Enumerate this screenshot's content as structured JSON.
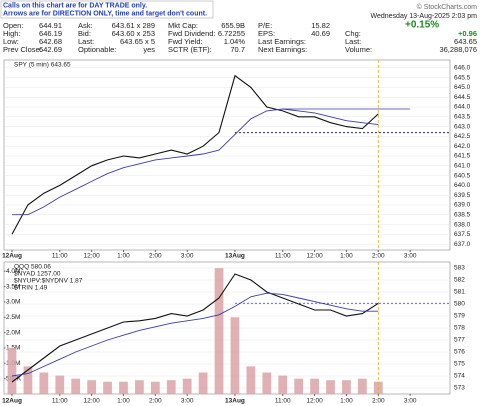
{
  "note": [
    "Calls on this chart are for DAY TRADE only.",
    "Arrows are for DIRECTION ONLY, time and target don't count."
  ],
  "date": "Wednesday 13-Aug-2025 2:03 pm",
  "watermark": "© StockCharts.com",
  "quote": {
    "change_pct": "+0.15%",
    "cols": [
      [
        {
          "label": "Open:",
          "value": "644.91"
        },
        {
          "label": "High:",
          "value": "646.19"
        },
        {
          "label": "Low:",
          "value": "642.68"
        },
        {
          "label": "Prev Close:",
          "value": "642.69"
        }
      ],
      [
        {
          "label": "Ask:",
          "value": "643.61 x 289"
        },
        {
          "label": "Bid:",
          "value": "643.60 x 253"
        },
        {
          "label": "Last:",
          "value": "643.65 x 5"
        },
        {
          "label": "Optionable:",
          "value": "yes"
        }
      ],
      [
        {
          "label": "Mkt Cap:",
          "value": "655.9B"
        },
        {
          "label": "Fwd Dividend:",
          "value": "6.72255"
        },
        {
          "label": "Fwd Yield:",
          "value": "1.04%"
        },
        {
          "label": "SCTR (ETF):",
          "value": "70.7"
        }
      ],
      [
        {
          "label": "P/E:",
          "value": "15.82"
        },
        {
          "label": "EPS:",
          "value": "40.69"
        },
        {
          "label": "Last Earnings:"
        },
        {
          "label": "Next Earnings:"
        }
      ],
      [
        {
          "label": "Chg:",
          "value": "+0.96"
        },
        {
          "label": "Last:",
          "value": "643.65"
        },
        {
          "label": "Volume:",
          "value": "36,288,076"
        }
      ]
    ]
  },
  "chart_data": [
    {
      "type": "line",
      "legend": [
        "SPY (5 min) 643.65"
      ],
      "categories": [
        "12Aug",
        null,
        null,
        "11:00",
        null,
        "12:00",
        null,
        "1:00",
        null,
        "2:00",
        null,
        "3:00",
        null,
        null,
        "13Aug",
        null,
        null,
        "11:00",
        null,
        "12:00",
        null,
        "1:00",
        null,
        "2:00",
        null,
        "3:00",
        null,
        null
      ],
      "series": [
        {
          "name": "SPY",
          "color": "#111111",
          "values": [
            637.5,
            639.0,
            639.6,
            640.0,
            640.5,
            641.0,
            641.3,
            641.5,
            641.4,
            641.6,
            641.8,
            641.6,
            642.0,
            642.7,
            645.6,
            645.0,
            644.0,
            643.8,
            643.5,
            643.5,
            643.2,
            643.0,
            642.9,
            643.65,
            null,
            null,
            null,
            null
          ]
        },
        {
          "name": "SMA",
          "color": "#3a3aa8",
          "values": [
            638.5,
            638.5,
            638.9,
            639.4,
            639.8,
            640.2,
            640.6,
            640.9,
            641.1,
            641.3,
            641.4,
            641.5,
            641.6,
            641.8,
            642.6,
            643.4,
            643.8,
            643.9,
            643.8,
            643.7,
            643.5,
            643.3,
            643.2,
            643.1,
            null,
            null,
            null,
            null
          ]
        }
      ],
      "hlines": [
        {
          "value": 642.69,
          "color": "#000080",
          "dash": true
        },
        {
          "value": 643.9,
          "color": "#3a3aa8",
          "dash": false
        }
      ],
      "ylim": [
        636.7,
        646.4
      ],
      "yticks": [
        {
          "value": 637,
          "label": "637.0"
        },
        637.5,
        {
          "value": 638,
          "label": "638.0"
        },
        638.5,
        {
          "value": 639,
          "label": "639.0"
        },
        639.5,
        {
          "value": 640,
          "label": "640.0"
        },
        640.5,
        {
          "value": 641,
          "label": "641.0"
        },
        641.5,
        {
          "value": 642,
          "label": "642.0"
        },
        642.5,
        {
          "value": 643,
          "label": "643.0"
        },
        643.5,
        {
          "value": 644,
          "label": "644.0"
        },
        644.5,
        {
          "value": 645,
          "label": "645.0"
        },
        645.5,
        {
          "value": 646,
          "label": "646.0"
        }
      ],
      "grid": true
    },
    {
      "type": "line",
      "legend": [
        "QQQ 580.06",
        "$NYAD 1257.00",
        "$NYUPV:$NYDNV 1.87",
        "$TRIN 1.49"
      ],
      "categories": [
        "12Aug",
        null,
        null,
        "11:00",
        null,
        "12:00",
        null,
        "1:00",
        null,
        "2:00",
        null,
        "3:00",
        null,
        null,
        "13Aug",
        null,
        null,
        "11:00",
        null,
        "12:00",
        null,
        "1:00",
        null,
        "2:00",
        null,
        "3:00",
        null,
        null
      ],
      "series": [
        {
          "name": "QQQ",
          "color": "#111111",
          "values": [
            573.5,
            574.5,
            575.5,
            576.5,
            577.0,
            577.5,
            578.0,
            578.5,
            578.6,
            578.8,
            579.2,
            579.0,
            579.5,
            580.5,
            582.5,
            582.0,
            581.0,
            580.5,
            580.0,
            579.5,
            579.5,
            579.0,
            579.2,
            580.06,
            null,
            null,
            null,
            null
          ]
        },
        {
          "name": "SMA",
          "color": "#3a3aa8",
          "values": [
            574.0,
            574.2,
            574.8,
            575.4,
            576.0,
            576.5,
            577.0,
            577.4,
            577.8,
            578.1,
            578.4,
            578.6,
            578.8,
            579.1,
            579.8,
            580.6,
            580.9,
            580.8,
            580.5,
            580.2,
            579.9,
            579.6,
            579.4,
            579.4,
            null,
            null,
            null,
            null
          ]
        },
        {
          "name": "Volume",
          "type": "bar",
          "axis": "y2",
          "color": "#d9a3a8",
          "values": [
            1500000,
            900000,
            700000,
            600000,
            500000,
            450000,
            400000,
            400000,
            450000,
            400000,
            450000,
            500000,
            700000,
            4100000,
            2500000,
            900000,
            700000,
            600000,
            500000,
            500000,
            450000,
            450000,
            500000,
            400000,
            null,
            null,
            null,
            null
          ]
        }
      ],
      "hlines": [
        {
          "value": 580.06,
          "color": "#3a3aa8",
          "dash": true
        }
      ],
      "ylim": [
        572.5,
        583.5
      ],
      "yticks": [
        573,
        574,
        575,
        576,
        577,
        578,
        579,
        580,
        581,
        582,
        583
      ],
      "y2lim": [
        0,
        4300000
      ],
      "y2ticks": [
        {
          "value": 500000,
          "label": "500K"
        },
        {
          "value": 1000000,
          "label": "1.0M"
        },
        {
          "value": 1500000,
          "label": "1.5M"
        },
        {
          "value": 2000000,
          "label": "2.0M"
        },
        {
          "value": 2500000,
          "label": "2.5M"
        },
        {
          "value": 3000000,
          "label": "3.0M"
        },
        {
          "value": 3500000,
          "label": "3.5M"
        },
        {
          "value": 4000000,
          "label": "4.0M"
        }
      ],
      "grid": true
    }
  ]
}
